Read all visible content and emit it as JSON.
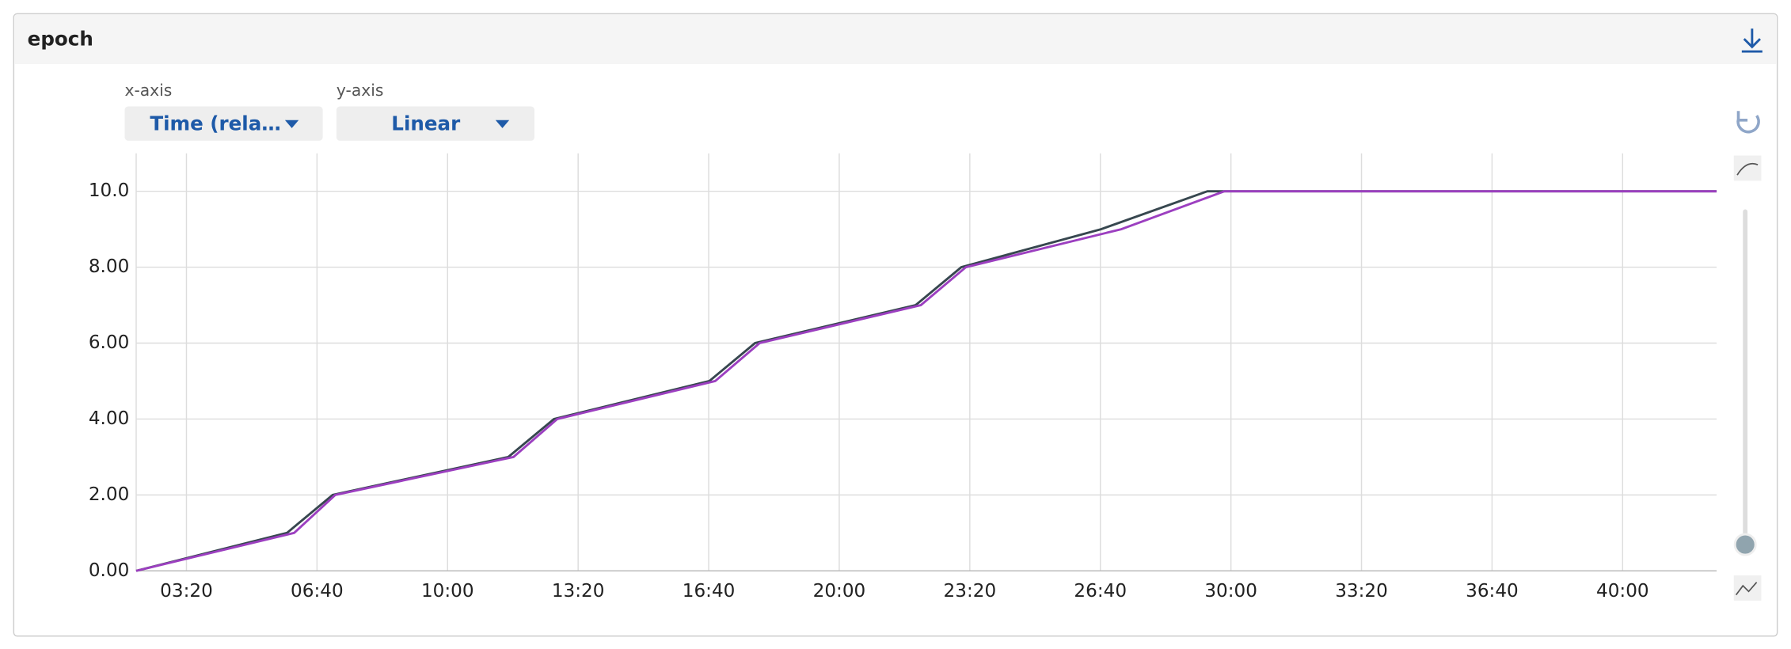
{
  "header": {
    "title": "epoch"
  },
  "controls": {
    "x_axis_label": "x-axis",
    "x_axis_value": "Time (rela…",
    "y_axis_label": "y-axis",
    "y_axis_value": "Linear"
  },
  "chart_data": {
    "type": "line",
    "xlim": [
      123,
      2544
    ],
    "ylim": [
      0,
      11
    ],
    "xticks": [
      {
        "value": 200,
        "label": "03:20"
      },
      {
        "value": 400,
        "label": "06:40"
      },
      {
        "value": 600,
        "label": "10:00"
      },
      {
        "value": 800,
        "label": "13:20"
      },
      {
        "value": 1000,
        "label": "16:40"
      },
      {
        "value": 1200,
        "label": "20:00"
      },
      {
        "value": 1400,
        "label": "23:20"
      },
      {
        "value": 1600,
        "label": "26:40"
      },
      {
        "value": 1800,
        "label": "30:00"
      },
      {
        "value": 2000,
        "label": "33:20"
      },
      {
        "value": 2200,
        "label": "36:40"
      },
      {
        "value": 2400,
        "label": "40:00"
      }
    ],
    "yticks": [
      {
        "value": 0,
        "label": "0.00"
      },
      {
        "value": 2,
        "label": "2.00"
      },
      {
        "value": 4,
        "label": "4.00"
      },
      {
        "value": 6,
        "label": "6.00"
      },
      {
        "value": 8,
        "label": "8.00"
      },
      {
        "value": 10,
        "label": "10.0"
      }
    ],
    "grid": true,
    "series": [
      {
        "color": "#37474f",
        "x": [
          123,
          354,
          424,
          693,
          763,
          1001,
          1071,
          1317,
          1387,
          1601,
          1764,
          2544
        ],
        "values": [
          0,
          1,
          2,
          3,
          4,
          5,
          6,
          7,
          8,
          9,
          10,
          10
        ]
      },
      {
        "color": "#9c3fc0",
        "x": [
          123,
          365,
          428,
          701,
          768,
          1010,
          1078,
          1325,
          1394,
          1632,
          1790,
          2544
        ],
        "values": [
          0,
          1,
          2,
          3,
          4,
          5,
          6,
          7,
          8,
          9,
          10,
          10
        ]
      }
    ]
  }
}
